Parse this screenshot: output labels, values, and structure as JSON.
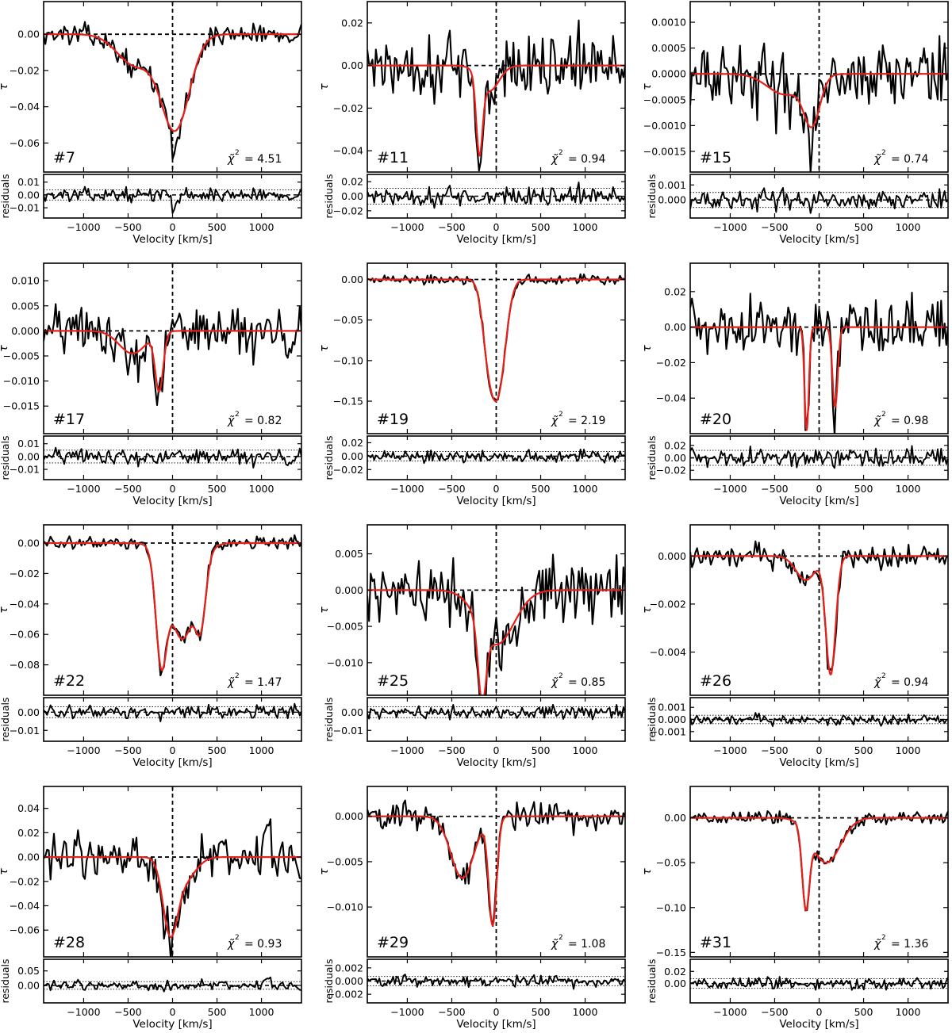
{
  "figure": {
    "xlabel": "Velocity [km/s]",
    "ylabel_main": "τ",
    "ylabel_resid": "residuals",
    "chi_label": "χ̃",
    "chi_sup": "2",
    "colors": {
      "data": "#000000",
      "fit": "#e8201a",
      "axes": "#000000"
    }
  },
  "chart_data": [
    {
      "type": "line",
      "panel": "#7",
      "chi2": "= 4.51",
      "xlim": [
        -1450,
        1450
      ],
      "xticks": [
        "−1000",
        "−500",
        "0",
        "500",
        "1000"
      ],
      "xtick_values": [
        -1000,
        -500,
        0,
        500,
        1000
      ],
      "ylim": [
        -0.076,
        0.018
      ],
      "yticks": [
        "0.00",
        "−0.02",
        "−0.04",
        "−0.06"
      ],
      "ytick_values": [
        0,
        -0.02,
        -0.04,
        -0.06
      ],
      "fit_components": [
        {
          "v0": -420,
          "sigma": 200,
          "amp": -0.017
        },
        {
          "v0": 30,
          "sigma": 160,
          "amp": -0.052
        }
      ],
      "data_noise": 0.004,
      "data_spike": {
        "v": 20,
        "amp": -0.016
      },
      "resid_ylim": [
        -0.018,
        0.016
      ],
      "resid_yticks": [
        "0.01",
        "0.00",
        "−0.01"
      ],
      "resid_ytick_values": [
        0.01,
        0,
        -0.01
      ],
      "resid_band": 0.004
    },
    {
      "type": "line",
      "panel": "#11",
      "chi2": "= 0.94",
      "xlim": [
        -1450,
        1450
      ],
      "xticks": [
        "−1000",
        "−500",
        "0",
        "500",
        "1000"
      ],
      "xtick_values": [
        -1000,
        -500,
        0,
        500,
        1000
      ],
      "ylim": [
        -0.05,
        0.03
      ],
      "yticks": [
        "0.02",
        "0.00",
        "−0.02",
        "−0.04"
      ],
      "ytick_values": [
        0.02,
        0,
        -0.02,
        -0.04
      ],
      "fit_components": [
        {
          "v0": -190,
          "sigma": 35,
          "amp": -0.035
        },
        {
          "v0": -80,
          "sigma": 110,
          "amp": -0.012
        }
      ],
      "data_noise": 0.011,
      "data_spike": {
        "v": -190,
        "amp": -0.008
      },
      "resid_ylim": [
        -0.03,
        0.03
      ],
      "resid_yticks": [
        "0.02",
        "0.00",
        "−0.02"
      ],
      "resid_ytick_values": [
        0.02,
        0,
        -0.02
      ],
      "resid_band": 0.011
    },
    {
      "type": "line",
      "panel": "#15",
      "chi2": "= 0.74",
      "xlim": [
        -1450,
        1450
      ],
      "xticks": [
        "−1000",
        "−500",
        "0",
        "500",
        "1000"
      ],
      "xtick_values": [
        -1000,
        -500,
        0,
        500,
        1000
      ],
      "ylim": [
        -0.0019,
        0.0014
      ],
      "yticks": [
        "0.0010",
        "0.0005",
        "0.0000",
        "−0.0005",
        "−0.0010",
        "−0.0015"
      ],
      "ytick_values": [
        0.001,
        0.0005,
        0,
        -0.0005,
        -0.001,
        -0.0015
      ],
      "fit_components": [
        {
          "v0": -380,
          "sigma": 200,
          "amp": -0.0004
        },
        {
          "v0": -80,
          "sigma": 90,
          "amp": -0.0009
        }
      ],
      "data_noise": 0.00045,
      "data_spike": {
        "v": -80,
        "amp": -0.0004
      },
      "resid_ylim": [
        -0.0012,
        0.0017
      ],
      "resid_yticks": [
        "0.001",
        "0.000"
      ],
      "resid_ytick_values": [
        0.001,
        0
      ],
      "resid_band": 0.0005
    },
    {
      "type": "line",
      "panel": "#17",
      "chi2": "= 0.82",
      "xlim": [
        -1450,
        1450
      ],
      "xticks": [
        "−1000",
        "−500",
        "0",
        "500",
        "1000"
      ],
      "xtick_values": [
        -1000,
        -500,
        0,
        500,
        1000
      ],
      "ylim": [
        -0.0205,
        0.0135
      ],
      "yticks": [
        "0.010",
        "0.005",
        "0.000",
        "−0.005",
        "−0.010",
        "−0.015"
      ],
      "ytick_values": [
        0.01,
        0.005,
        0,
        -0.005,
        -0.01,
        -0.015
      ],
      "fit_components": [
        {
          "v0": -450,
          "sigma": 150,
          "amp": -0.0045
        },
        {
          "v0": -150,
          "sigma": 45,
          "amp": -0.0115
        }
      ],
      "data_noise": 0.0035,
      "data_spike": {
        "v": -170,
        "amp": -0.003
      },
      "resid_ylim": [
        -0.018,
        0.016
      ],
      "resid_yticks": [
        "0.01",
        "0.00",
        "−0.01"
      ],
      "resid_ytick_values": [
        0.01,
        0,
        -0.01
      ],
      "resid_band": 0.005
    },
    {
      "type": "line",
      "panel": "#19",
      "chi2": "= 2.19",
      "xlim": [
        -1450,
        1450
      ],
      "xticks": [
        "−1000",
        "−500",
        "0",
        "500",
        "1000"
      ],
      "xtick_values": [
        -1000,
        -500,
        0,
        500,
        1000
      ],
      "ylim": [
        -0.19,
        0.02
      ],
      "yticks": [
        "0.00",
        "−0.05",
        "−0.10",
        "−0.15"
      ],
      "ytick_values": [
        0,
        -0.05,
        -0.1,
        -0.15
      ],
      "fit_components": [
        {
          "v0": -100,
          "sigma": 65,
          "amp": -0.06
        },
        {
          "v0": 20,
          "sigma": 85,
          "amp": -0.135
        }
      ],
      "data_noise": 0.004,
      "data_spike": {
        "v": 0,
        "amp": 0
      },
      "resid_ylim": [
        -0.035,
        0.03
      ],
      "resid_yticks": [
        "0.02",
        "0.00",
        "−0.02"
      ],
      "resid_ytick_values": [
        0.02,
        0,
        -0.02
      ],
      "resid_band": 0.007
    },
    {
      "type": "line",
      "panel": "#20",
      "chi2": "= 0.98",
      "xlim": [
        -1450,
        1450
      ],
      "xticks": [
        "−1000",
        "−500",
        "0",
        "500",
        "1000"
      ],
      "xtick_values": [
        -1000,
        -500,
        0,
        500,
        1000
      ],
      "ylim": [
        -0.06,
        0.036
      ],
      "yticks": [
        "0.02",
        "0.00",
        "−0.02",
        "−0.04"
      ],
      "ytick_values": [
        0.02,
        0,
        -0.02,
        -0.04
      ],
      "fit_components": [
        {
          "v0": -140,
          "sigma": 24,
          "amp": -0.058
        },
        {
          "v0": 180,
          "sigma": 30,
          "amp": -0.045
        }
      ],
      "data_noise": 0.011,
      "data_spike": {
        "v": 0,
        "amp": 0
      },
      "resid_ylim": [
        -0.035,
        0.035
      ],
      "resid_yticks": [
        "0.02",
        "0.00",
        "−0.02"
      ],
      "resid_ytick_values": [
        0.02,
        0,
        -0.02
      ],
      "resid_band": 0.012
    },
    {
      "type": "line",
      "panel": "#22",
      "chi2": "= 1.47",
      "xlim": [
        -1450,
        1450
      ],
      "xticks": [
        "−1000",
        "−500",
        "0",
        "500",
        "1000"
      ],
      "xtick_values": [
        -1000,
        -500,
        0,
        500,
        1000
      ],
      "ylim": [
        -0.1,
        0.012
      ],
      "yticks": [
        "0.00",
        "−0.02",
        "−0.04",
        "−0.06",
        "−0.08"
      ],
      "ytick_values": [
        0,
        -0.02,
        -0.04,
        -0.06,
        -0.08
      ],
      "fit_components": [
        {
          "v0": -130,
          "sigma": 60,
          "amp": -0.065
        },
        {
          "v0": 110,
          "sigma": 150,
          "amp": -0.063
        },
        {
          "v0": 320,
          "sigma": 55,
          "amp": -0.035
        }
      ],
      "data_noise": 0.003,
      "data_spike": {
        "v": 0,
        "amp": 0
      },
      "resid_ylim": [
        -0.016,
        0.008
      ],
      "resid_yticks": [
        "0.00",
        "−0.01"
      ],
      "resid_ytick_values": [
        0,
        -0.01
      ],
      "resid_band": 0.003
    },
    {
      "type": "line",
      "panel": "#25",
      "chi2": "= 0.85",
      "xlim": [
        -1450,
        1450
      ],
      "xticks": [
        "−1000",
        "−500",
        "0",
        "500",
        "1000"
      ],
      "xtick_values": [
        -1000,
        -500,
        0,
        500,
        1000
      ],
      "ylim": [
        -0.0145,
        0.009
      ],
      "yticks": [
        "0.005",
        "0.000",
        "−0.005",
        "−0.010"
      ],
      "ytick_values": [
        0.005,
        0,
        -0.005,
        -0.01
      ],
      "fit_components": [
        {
          "v0": -160,
          "sigma": 45,
          "amp": -0.01
        },
        {
          "v0": 0,
          "sigma": 200,
          "amp": -0.0075
        }
      ],
      "data_noise": 0.0032,
      "data_spike": {
        "v": 0,
        "amp": 0
      },
      "resid_ylim": [
        -0.016,
        0.008
      ],
      "resid_yticks": [
        "0.00",
        "−0.01"
      ],
      "resid_ytick_values": [
        0,
        -0.01
      ],
      "resid_band": 0.003
    },
    {
      "type": "line",
      "panel": "#26",
      "chi2": "= 0.94",
      "xlim": [
        -1450,
        1450
      ],
      "xticks": [
        "−1000",
        "−500",
        "0",
        "500",
        "1000"
      ],
      "xtick_values": [
        -1000,
        -500,
        0,
        500,
        1000
      ],
      "ylim": [
        -0.0058,
        0.0013
      ],
      "yticks": [
        "0.000",
        "−0.002",
        "−0.004"
      ],
      "ytick_values": [
        0,
        -0.002,
        -0.004
      ],
      "fit_components": [
        {
          "v0": -150,
          "sigma": 110,
          "amp": -0.001
        },
        {
          "v0": 130,
          "sigma": 55,
          "amp": -0.0049
        }
      ],
      "data_noise": 0.00035,
      "data_spike": {
        "v": 0,
        "amp": 0
      },
      "resid_ylim": [
        -0.0018,
        0.0018
      ],
      "resid_yticks": [
        "0.001",
        "0.000",
        "−0.001"
      ],
      "resid_ytick_values": [
        0.001,
        0,
        -0.001
      ],
      "resid_band": 0.00035
    },
    {
      "type": "line",
      "panel": "#28",
      "chi2": "= 0.93",
      "xlim": [
        -1450,
        1450
      ],
      "xticks": [
        "−1000",
        "−500",
        "0",
        "500",
        "1000"
      ],
      "xtick_values": [
        -1000,
        -500,
        0,
        500,
        1000
      ],
      "ylim": [
        -0.082,
        0.058
      ],
      "yticks": [
        "0.04",
        "0.02",
        "0.00",
        "−0.02",
        "−0.04",
        "−0.06"
      ],
      "ytick_values": [
        0.04,
        0.02,
        0,
        -0.02,
        -0.04,
        -0.06
      ],
      "fit_components": [
        {
          "v0": -30,
          "sigma": 80,
          "amp": -0.055
        },
        {
          "v0": 120,
          "sigma": 130,
          "amp": -0.02
        }
      ],
      "data_noise": 0.013,
      "data_spike": {
        "v": 1070,
        "amp": 0.04
      },
      "resid_ylim": [
        -0.06,
        0.09
      ],
      "resid_yticks": [
        "0.05",
        "0.00"
      ],
      "resid_ytick_values": [
        0.05,
        0
      ],
      "resid_band": 0.013
    },
    {
      "type": "line",
      "panel": "#29",
      "chi2": "= 1.08",
      "xlim": [
        -1450,
        1450
      ],
      "xticks": [
        "−1000",
        "−500",
        "0",
        "500",
        "1000"
      ],
      "xtick_values": [
        -1000,
        -500,
        0,
        500,
        1000
      ],
      "ylim": [
        -0.0155,
        0.0033
      ],
      "yticks": [
        "0.000",
        "−0.005",
        "−0.010"
      ],
      "ytick_values": [
        0,
        -0.005,
        -0.01
      ],
      "fit_components": [
        {
          "v0": -380,
          "sigma": 130,
          "amp": -0.0068
        },
        {
          "v0": -40,
          "sigma": 45,
          "amp": -0.0118
        }
      ],
      "data_noise": 0.0011,
      "data_spike": {
        "v": 0,
        "amp": 0
      },
      "resid_ylim": [
        -0.0033,
        0.0033
      ],
      "resid_yticks": [
        "0.002",
        "0.000",
        "−0.002"
      ],
      "resid_ytick_values": [
        0.002,
        0,
        -0.002
      ],
      "resid_band": 0.0007
    },
    {
      "type": "line",
      "panel": "#31",
      "chi2": "= 1.36",
      "xlim": [
        -1450,
        1450
      ],
      "xticks": [
        "−1000",
        "−500",
        "0",
        "500",
        "1000"
      ],
      "xtick_values": [
        -1000,
        -500,
        0,
        500,
        1000
      ],
      "ylim": [
        -0.155,
        0.035
      ],
      "yticks": [
        "0.00",
        "−0.05",
        "−0.10",
        "−0.15"
      ],
      "ytick_values": [
        0,
        -0.05,
        -0.1,
        -0.15
      ],
      "fit_components": [
        {
          "v0": -150,
          "sigma": 40,
          "amp": -0.085
        },
        {
          "v0": 80,
          "sigma": 160,
          "amp": -0.05
        }
      ],
      "data_noise": 0.005,
      "data_spike": {
        "v": 0,
        "amp": 0
      },
      "resid_ylim": [
        -0.032,
        0.04
      ],
      "resid_yticks": [
        "0.02",
        "0.00"
      ],
      "resid_ytick_values": [
        0.02,
        0
      ],
      "resid_band": 0.008
    }
  ]
}
